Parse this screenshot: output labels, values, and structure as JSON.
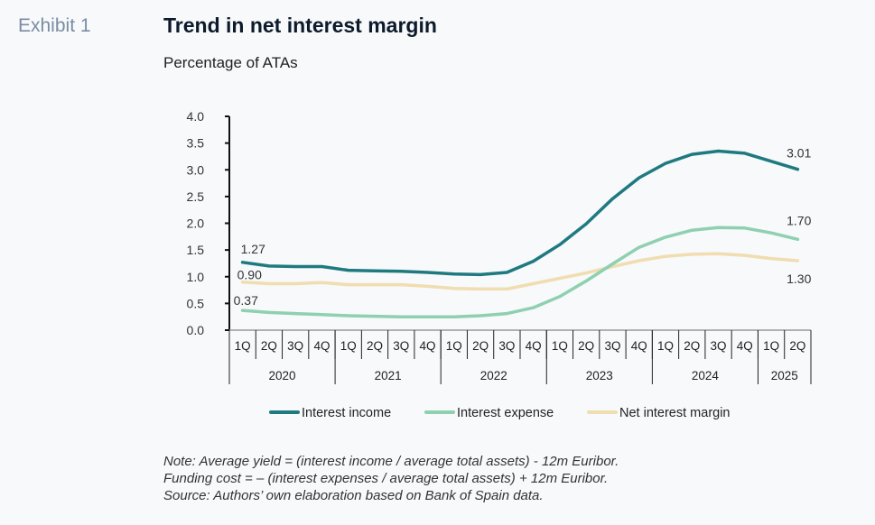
{
  "header": {
    "exhibit_label": "Exhibit 1",
    "title": "Trend in net interest margin",
    "subtitle": "Percentage of ATAs"
  },
  "notes": [
    "Note: Average yield = (interest income / average total assets) - 12m Euribor.",
    "Funding cost = – (interest expenses / average total assets) + 12m Euribor.",
    "Source: Authors’ own elaboration based on Bank of Spain data."
  ],
  "chart_data": {
    "type": "line",
    "title": "Trend in net interest margin",
    "subtitle": "Percentage of ATAs",
    "xlabel": "",
    "ylabel": "",
    "ylim": [
      0,
      4
    ],
    "yticks": [
      "0.0",
      "0.5",
      "1.0",
      "1.5",
      "2.0",
      "2.5",
      "3.0",
      "3.5",
      "4.0"
    ],
    "grid": false,
    "legend_position": "bottom",
    "x": [
      "1Q",
      "2Q",
      "3Q",
      "4Q",
      "1Q",
      "2Q",
      "3Q",
      "4Q",
      "1Q",
      "2Q",
      "3Q",
      "4Q",
      "1Q",
      "2Q",
      "3Q",
      "4Q",
      "1Q",
      "2Q",
      "3Q",
      "4Q",
      "1Q",
      "2Q"
    ],
    "years": [
      {
        "label": "2020",
        "quarters": 4
      },
      {
        "label": "2021",
        "quarters": 4
      },
      {
        "label": "2022",
        "quarters": 4
      },
      {
        "label": "2023",
        "quarters": 4
      },
      {
        "label": "2024",
        "quarters": 4
      },
      {
        "label": "2025",
        "quarters": 2
      }
    ],
    "series": [
      {
        "name": "Interest income",
        "color": "#1f7a80",
        "values": [
          1.27,
          1.2,
          1.19,
          1.19,
          1.12,
          1.11,
          1.1,
          1.08,
          1.05,
          1.04,
          1.08,
          1.29,
          1.6,
          1.99,
          2.46,
          2.85,
          3.12,
          3.29,
          3.35,
          3.31,
          3.16,
          3.01
        ],
        "annotations": [
          {
            "index": 0,
            "text": "1.27"
          },
          {
            "index": 21,
            "text": "3.01"
          }
        ]
      },
      {
        "name": "Interest expense",
        "color": "#8fd0b0",
        "values": [
          0.37,
          0.33,
          0.31,
          0.29,
          0.27,
          0.26,
          0.25,
          0.25,
          0.25,
          0.27,
          0.31,
          0.42,
          0.63,
          0.92,
          1.24,
          1.55,
          1.74,
          1.87,
          1.92,
          1.91,
          1.82,
          1.7
        ],
        "annotations": [
          {
            "index": 0,
            "text": "0.37"
          },
          {
            "index": 21,
            "text": "1.70"
          }
        ]
      },
      {
        "name": "Net interest margin",
        "color": "#f0ddb0",
        "values": [
          0.9,
          0.87,
          0.87,
          0.89,
          0.85,
          0.85,
          0.85,
          0.82,
          0.78,
          0.77,
          0.77,
          0.87,
          0.97,
          1.07,
          1.19,
          1.3,
          1.38,
          1.42,
          1.43,
          1.4,
          1.34,
          1.3
        ],
        "annotations": [
          {
            "index": 0,
            "text": "0.90"
          },
          {
            "index": 21,
            "text": "1.30"
          }
        ]
      }
    ]
  }
}
